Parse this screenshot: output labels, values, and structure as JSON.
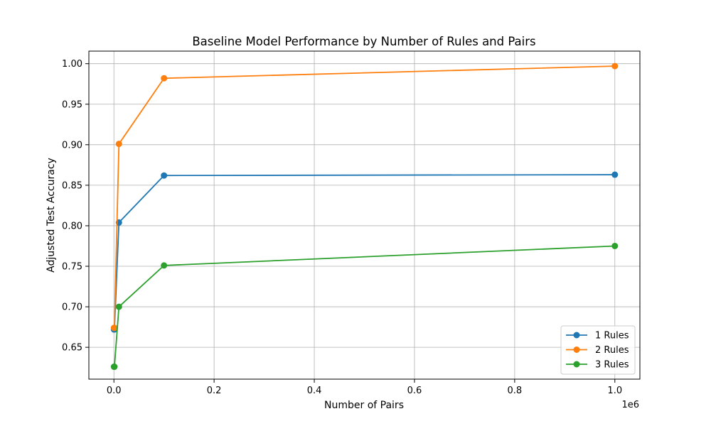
{
  "chart_data": {
    "type": "line",
    "title": "Baseline Model Performance by Number of Rules and Pairs",
    "xlabel": "Number of Pairs",
    "ylabel": "Adjusted Test Accuracy",
    "x_offset_label": "1e6",
    "xlim": [
      -50000,
      1050000
    ],
    "ylim": [
      0.6107,
      1.0155
    ],
    "x_ticks": [
      0,
      200000,
      400000,
      600000,
      800000,
      1000000
    ],
    "x_tick_labels": [
      "0.0",
      "0.2",
      "0.4",
      "0.6",
      "0.8",
      "1.0"
    ],
    "y_ticks": [
      0.65,
      0.7,
      0.75,
      0.8,
      0.85,
      0.9,
      0.95,
      1.0
    ],
    "y_tick_labels": [
      "0.65",
      "0.70",
      "0.75",
      "0.80",
      "0.85",
      "0.90",
      "0.95",
      "1.00"
    ],
    "grid": true,
    "legend_position": "lower-right",
    "x": [
      100,
      1000,
      10000,
      100000,
      1000000
    ],
    "series": [
      {
        "name": "1 Rules",
        "color": "#1f77b4",
        "values": [
          0.672,
          0.672,
          0.804,
          0.862,
          0.863
        ]
      },
      {
        "name": "2 Rules",
        "color": "#ff7f0e",
        "values": [
          0.674,
          0.674,
          0.901,
          0.982,
          0.997
        ]
      },
      {
        "name": "3 Rules",
        "color": "#2ca02c",
        "values": [
          0.626,
          0.626,
          0.7,
          0.751,
          0.775
        ]
      }
    ]
  }
}
